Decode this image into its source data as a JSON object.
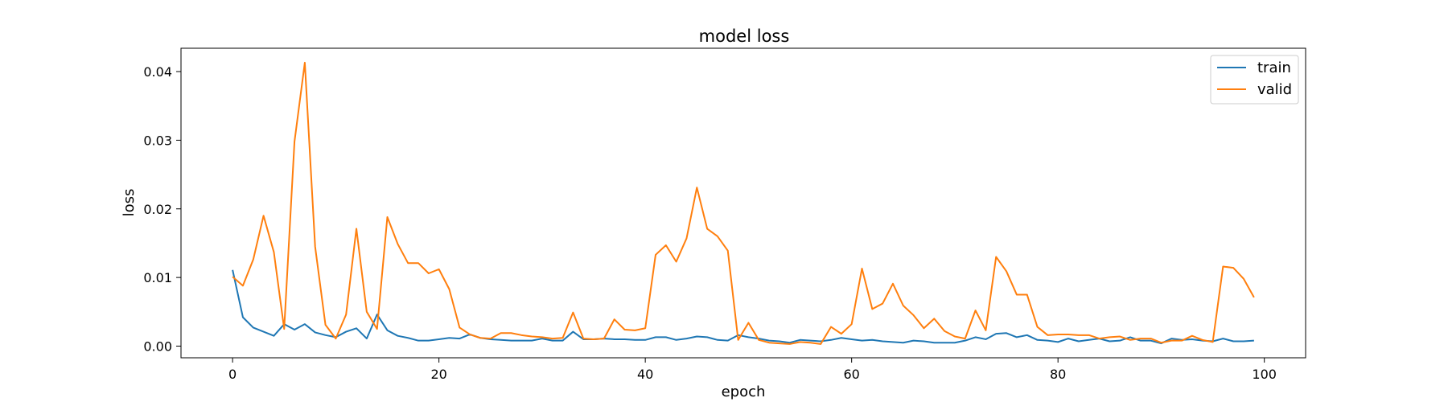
{
  "chart_data": {
    "type": "line",
    "title": "model loss",
    "xlabel": "epoch",
    "ylabel": "loss",
    "xlim": [
      -5,
      104
    ],
    "ylim": [
      -0.0017,
      0.0434
    ],
    "xticks": [
      0,
      20,
      40,
      60,
      80,
      100
    ],
    "yticks": [
      0.0,
      0.01,
      0.02,
      0.03,
      0.04
    ],
    "xtick_labels": [
      "0",
      "20",
      "40",
      "60",
      "80",
      "100"
    ],
    "ytick_labels": [
      "0.00",
      "0.01",
      "0.02",
      "0.03",
      "0.04"
    ],
    "grid": false,
    "legend_position": "top-right",
    "x": [
      0,
      1,
      2,
      3,
      4,
      5,
      6,
      7,
      8,
      9,
      10,
      11,
      12,
      13,
      14,
      15,
      16,
      17,
      18,
      19,
      20,
      21,
      22,
      23,
      24,
      25,
      26,
      27,
      28,
      29,
      30,
      31,
      32,
      33,
      34,
      35,
      36,
      37,
      38,
      39,
      40,
      41,
      42,
      43,
      44,
      45,
      46,
      47,
      48,
      49,
      50,
      51,
      52,
      53,
      54,
      55,
      56,
      57,
      58,
      59,
      60,
      61,
      62,
      63,
      64,
      65,
      66,
      67,
      68,
      69,
      70,
      71,
      72,
      73,
      74,
      75,
      76,
      77,
      78,
      79,
      80,
      81,
      82,
      83,
      84,
      85,
      86,
      87,
      88,
      89,
      90,
      91,
      92,
      93,
      94,
      95,
      96,
      97,
      98,
      99
    ],
    "series": [
      {
        "name": "train",
        "color": "#1f77b4",
        "values": [
          0.0111,
          0.0042,
          0.0027,
          0.0021,
          0.0015,
          0.0032,
          0.0024,
          0.0032,
          0.002,
          0.0016,
          0.0013,
          0.0021,
          0.0026,
          0.0011,
          0.0046,
          0.0023,
          0.0015,
          0.0012,
          0.0008,
          0.0008,
          0.001,
          0.0012,
          0.0011,
          0.0017,
          0.0012,
          0.001,
          0.0009,
          0.0008,
          0.0008,
          0.0008,
          0.0011,
          0.0008,
          0.0008,
          0.0021,
          0.001,
          0.001,
          0.0011,
          0.001,
          0.001,
          0.0009,
          0.0009,
          0.0013,
          0.0013,
          0.0009,
          0.0011,
          0.0014,
          0.0013,
          0.0009,
          0.0008,
          0.0016,
          0.0013,
          0.0011,
          0.0008,
          0.0007,
          0.0005,
          0.0009,
          0.0008,
          0.0007,
          0.0009,
          0.0012,
          0.001,
          0.0008,
          0.0009,
          0.0007,
          0.0006,
          0.0005,
          0.0008,
          0.0007,
          0.0005,
          0.0005,
          0.0005,
          0.0008,
          0.0013,
          0.001,
          0.0018,
          0.0019,
          0.0013,
          0.0016,
          0.0009,
          0.0008,
          0.0006,
          0.0011,
          0.0007,
          0.0009,
          0.0011,
          0.0007,
          0.0008,
          0.0013,
          0.0008,
          0.0008,
          0.0004,
          0.0011,
          0.0009,
          0.001,
          0.0008,
          0.0007,
          0.0011,
          0.0007,
          0.0007,
          0.0008
        ]
      },
      {
        "name": "valid",
        "color": "#ff7f0e",
        "values": [
          0.0101,
          0.0088,
          0.0126,
          0.019,
          0.0137,
          0.0025,
          0.0298,
          0.0413,
          0.0145,
          0.0031,
          0.0011,
          0.0046,
          0.0171,
          0.005,
          0.0025,
          0.0188,
          0.0149,
          0.0121,
          0.0121,
          0.0106,
          0.0112,
          0.0083,
          0.0027,
          0.0017,
          0.0012,
          0.0011,
          0.0019,
          0.0019,
          0.0016,
          0.0014,
          0.0013,
          0.0011,
          0.0012,
          0.0049,
          0.0011,
          0.001,
          0.0011,
          0.0039,
          0.0024,
          0.0023,
          0.0026,
          0.0133,
          0.0147,
          0.0123,
          0.0157,
          0.0231,
          0.0171,
          0.016,
          0.0139,
          0.0009,
          0.0034,
          0.0009,
          0.0005,
          0.0004,
          0.0003,
          0.0006,
          0.0005,
          0.0003,
          0.0028,
          0.0018,
          0.0032,
          0.0113,
          0.0054,
          0.0062,
          0.0091,
          0.0059,
          0.0045,
          0.0026,
          0.004,
          0.0022,
          0.0014,
          0.0011,
          0.0052,
          0.0023,
          0.013,
          0.0109,
          0.0075,
          0.0075,
          0.0028,
          0.0016,
          0.0017,
          0.0017,
          0.0016,
          0.0016,
          0.0011,
          0.0013,
          0.0014,
          0.0009,
          0.0011,
          0.0011,
          0.0005,
          0.0008,
          0.0008,
          0.0015,
          0.0009,
          0.0006,
          0.0116,
          0.0114,
          0.0098,
          0.0071
        ]
      }
    ]
  }
}
